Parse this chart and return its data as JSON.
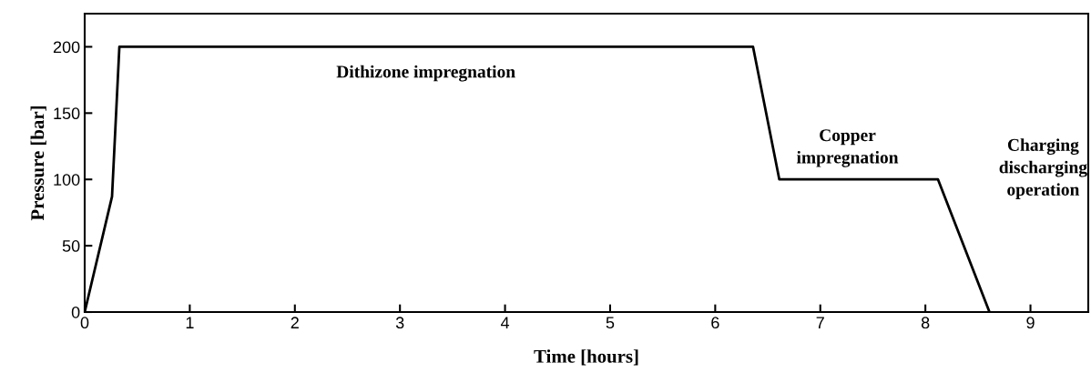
{
  "chart_data": {
    "type": "line",
    "xlabel": "Time [hours]",
    "ylabel": "Pressure [bar]",
    "x": [
      0,
      0.26,
      0.33,
      6.36,
      6.61,
      8.12,
      8.61
    ],
    "series": [
      {
        "color": "#000000",
        "values": [
          0,
          87,
          200,
          200,
          100,
          100,
          0
        ]
      }
    ],
    "xlim": [
      0,
      9.55
    ],
    "ylim": [
      0,
      225
    ],
    "xticks": [
      0,
      1,
      2,
      3,
      4,
      5,
      6,
      7,
      8,
      9
    ],
    "yticks": [
      0,
      50,
      100,
      150,
      200
    ],
    "grid": false,
    "legend": false,
    "marker": "none",
    "line_style": "solid",
    "annotations": [
      "Dithizone impregnation",
      "Copper\nimpregnation",
      "Charging\ndischarging\noperation"
    ]
  }
}
